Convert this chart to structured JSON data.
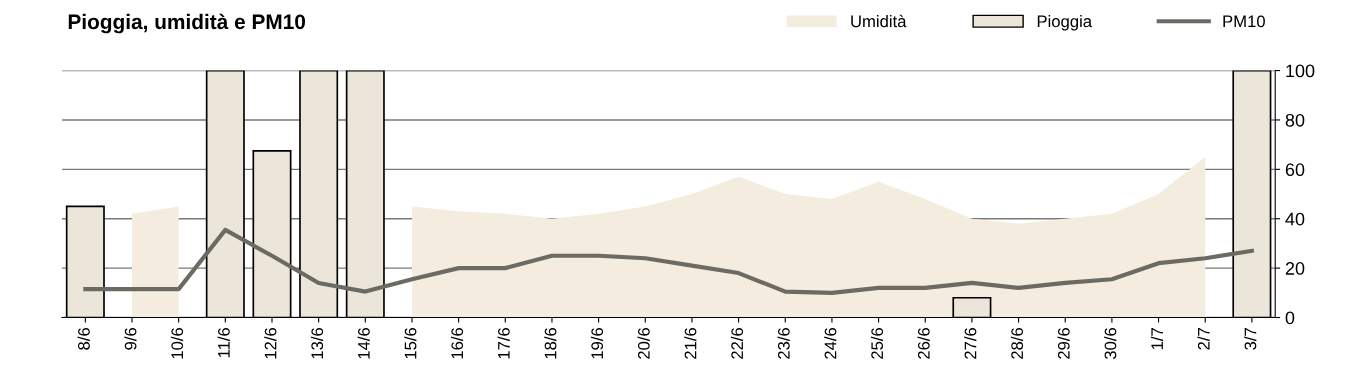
{
  "chart_data": {
    "type": "bar",
    "title": "Pioggia, umidità e PM10",
    "categories": [
      "8/6",
      "9/6",
      "10/6",
      "11/6",
      "12/6",
      "13/6",
      "14/6",
      "15/6",
      "16/6",
      "17/6",
      "18/6",
      "19/6",
      "20/6",
      "21/6",
      "22/6",
      "23/6",
      "24/6",
      "25/6",
      "26/6",
      "27/6",
      "28/6",
      "29/6",
      "30/6",
      "1/7",
      "2/7",
      "3/7"
    ],
    "series": [
      {
        "name": "Umidità",
        "type": "area",
        "color": "#f4ecdf",
        "values": [
          null,
          42,
          45,
          null,
          null,
          null,
          null,
          45,
          43,
          42,
          40,
          42,
          45,
          50,
          57,
          50,
          48,
          55,
          48,
          40,
          38,
          40,
          42,
          50,
          65,
          null
        ]
      },
      {
        "name": "Pioggia",
        "color": "#ebe5da",
        "values": [
          45,
          null,
          null,
          100,
          67.5,
          100,
          100,
          null,
          null,
          null,
          null,
          null,
          null,
          null,
          null,
          null,
          null,
          null,
          null,
          8,
          null,
          null,
          null,
          null,
          null,
          100
        ]
      },
      {
        "name": "PM10",
        "type": "line",
        "color": "#6b6b63",
        "values": [
          11.5,
          11.5,
          11.5,
          35.5,
          25,
          14,
          10.5,
          15.5,
          20,
          20,
          25,
          25,
          24,
          21,
          18,
          10.5,
          10,
          12,
          12,
          14,
          12,
          14,
          15.5,
          22,
          24,
          27
        ]
      }
    ],
    "ylim": [
      0,
      100
    ],
    "yticks": [
      0,
      20,
      40,
      60,
      80,
      100
    ],
    "grid": "y",
    "legend": "top right"
  }
}
